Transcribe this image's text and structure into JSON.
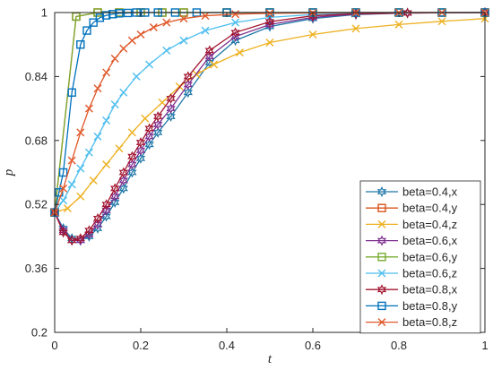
{
  "chart_data": {
    "type": "line",
    "xlabel": "t",
    "ylabel": "p",
    "xlim": [
      0,
      1
    ],
    "ylim": [
      0.2,
      1
    ],
    "x_ticks": [
      "0",
      "0.2",
      "0.4",
      "0.6",
      "0.8",
      "1"
    ],
    "y_ticks": [
      "0.2",
      "0.36",
      "0.52",
      "0.68",
      "0.84",
      "1"
    ],
    "grid": false,
    "legend_position": "bottom-right",
    "series": [
      {
        "name": "beta=0.4,x",
        "color": "#1f77a8",
        "marker": "hexagram",
        "x": [
          0,
          0.02,
          0.04,
          0.06,
          0.08,
          0.1,
          0.12,
          0.14,
          0.16,
          0.18,
          0.2,
          0.22,
          0.24,
          0.27,
          0.31,
          0.36,
          0.42,
          0.5,
          0.6,
          0.7,
          0.82,
          1.0
        ],
        "y": [
          0.5,
          0.46,
          0.435,
          0.43,
          0.44,
          0.46,
          0.49,
          0.525,
          0.56,
          0.6,
          0.635,
          0.67,
          0.7,
          0.74,
          0.8,
          0.875,
          0.93,
          0.965,
          0.985,
          0.995,
          0.999,
          1.0
        ]
      },
      {
        "name": "beta=0.4,y",
        "color": "#d95319",
        "marker": "square",
        "x": [
          0,
          0.05,
          0.1,
          0.15,
          0.2,
          0.25,
          0.3,
          0.4,
          0.5,
          0.6,
          0.7,
          0.8,
          0.9,
          1.0
        ],
        "y": [
          0.5,
          0.99,
          1.0,
          1.0,
          1.0,
          1.0,
          1.0,
          1.0,
          1.0,
          1.0,
          1.0,
          1.0,
          1.0,
          1.0
        ]
      },
      {
        "name": "beta=0.4,z",
        "color": "#edb120",
        "marker": "cross",
        "x": [
          0,
          0.03,
          0.06,
          0.09,
          0.12,
          0.15,
          0.18,
          0.21,
          0.25,
          0.29,
          0.33,
          0.37,
          0.43,
          0.5,
          0.6,
          0.7,
          0.8,
          0.9,
          1.0
        ],
        "y": [
          0.5,
          0.51,
          0.54,
          0.58,
          0.62,
          0.66,
          0.7,
          0.735,
          0.775,
          0.815,
          0.845,
          0.87,
          0.9,
          0.925,
          0.945,
          0.96,
          0.97,
          0.978,
          0.985
        ]
      },
      {
        "name": "beta=0.6,x",
        "color": "#7e2f8e",
        "marker": "hexagram",
        "x": [
          0,
          0.02,
          0.04,
          0.06,
          0.08,
          0.1,
          0.12,
          0.14,
          0.16,
          0.18,
          0.2,
          0.22,
          0.24,
          0.27,
          0.31,
          0.36,
          0.42,
          0.5,
          0.6,
          0.7,
          0.82,
          1.0
        ],
        "y": [
          0.5,
          0.455,
          0.43,
          0.43,
          0.445,
          0.47,
          0.505,
          0.54,
          0.58,
          0.62,
          0.655,
          0.69,
          0.72,
          0.76,
          0.82,
          0.89,
          0.94,
          0.97,
          0.988,
          0.996,
          0.999,
          1.0
        ]
      },
      {
        "name": "beta=0.6,y",
        "color": "#77ac30",
        "marker": "square",
        "x": [
          0,
          0.05,
          0.1,
          0.15,
          0.2,
          0.25,
          0.3,
          0.4,
          0.5,
          0.6,
          0.7,
          0.8,
          0.9,
          1.0
        ],
        "y": [
          0.5,
          0.99,
          1.0,
          1.0,
          1.0,
          1.0,
          1.0,
          1.0,
          1.0,
          1.0,
          1.0,
          1.0,
          1.0,
          1.0
        ]
      },
      {
        "name": "beta=0.6,z",
        "color": "#4dbeee",
        "marker": "cross",
        "x": [
          0,
          0.02,
          0.04,
          0.06,
          0.08,
          0.1,
          0.12,
          0.14,
          0.16,
          0.19,
          0.22,
          0.26,
          0.3,
          0.35,
          0.42,
          0.5,
          0.6,
          0.7,
          0.8,
          0.9,
          1.0
        ],
        "y": [
          0.5,
          0.53,
          0.57,
          0.61,
          0.65,
          0.69,
          0.73,
          0.77,
          0.8,
          0.84,
          0.87,
          0.905,
          0.93,
          0.955,
          0.975,
          0.988,
          0.995,
          0.998,
          0.999,
          1.0,
          1.0
        ]
      },
      {
        "name": "beta=0.8,x",
        "color": "#a2142f",
        "marker": "hexagram",
        "x": [
          0,
          0.02,
          0.04,
          0.06,
          0.08,
          0.1,
          0.12,
          0.14,
          0.16,
          0.18,
          0.2,
          0.22,
          0.24,
          0.27,
          0.31,
          0.36,
          0.42,
          0.5,
          0.6,
          0.7,
          0.82,
          1.0
        ],
        "y": [
          0.5,
          0.45,
          0.43,
          0.435,
          0.455,
          0.485,
          0.52,
          0.56,
          0.6,
          0.64,
          0.675,
          0.71,
          0.74,
          0.785,
          0.84,
          0.905,
          0.95,
          0.977,
          0.992,
          0.997,
          0.999,
          1.0
        ]
      },
      {
        "name": "beta=0.8,y",
        "color": "#0072bd",
        "marker": "square",
        "x": [
          0,
          0.01,
          0.02,
          0.04,
          0.06,
          0.075,
          0.09,
          0.105,
          0.12,
          0.135,
          0.15,
          0.17,
          0.19,
          0.21,
          0.24,
          0.28,
          0.33,
          0.4,
          0.5,
          0.6,
          0.7,
          0.8,
          0.9,
          1.0
        ],
        "y": [
          0.5,
          0.55,
          0.6,
          0.8,
          0.92,
          0.955,
          0.975,
          0.987,
          0.993,
          0.996,
          0.998,
          0.999,
          1.0,
          1.0,
          1.0,
          1.0,
          1.0,
          1.0,
          1.0,
          1.0,
          1.0,
          1.0,
          1.0,
          1.0
        ]
      },
      {
        "name": "beta=0.8,z",
        "color": "#e0582a",
        "marker": "cross",
        "x": [
          0,
          0.02,
          0.04,
          0.06,
          0.08,
          0.1,
          0.12,
          0.14,
          0.16,
          0.18,
          0.2,
          0.23,
          0.26,
          0.3,
          0.35,
          0.42,
          0.5,
          0.6,
          0.7,
          0.8,
          0.9,
          1.0
        ],
        "y": [
          0.5,
          0.56,
          0.63,
          0.7,
          0.76,
          0.81,
          0.85,
          0.885,
          0.91,
          0.93,
          0.945,
          0.963,
          0.975,
          0.985,
          0.992,
          0.996,
          0.998,
          0.999,
          1.0,
          1.0,
          1.0,
          1.0
        ]
      }
    ]
  }
}
